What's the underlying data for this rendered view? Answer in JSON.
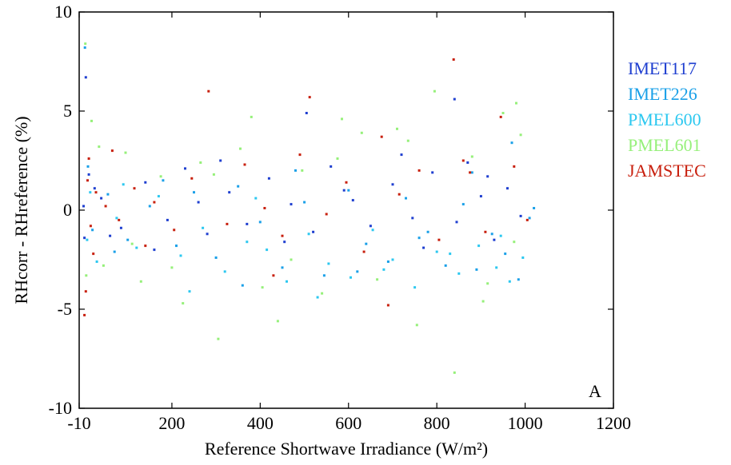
{
  "chart_data": {
    "type": "scatter",
    "panel_label": "A",
    "xlabel": "Reference Shortwave Irradiance (W/m²)",
    "ylabel": "RHcorr - RHreference (%)",
    "xlim": [
      -10,
      1200
    ],
    "ylim": [
      -10,
      10
    ],
    "x_ticks": [
      -10,
      200,
      400,
      600,
      800,
      1000,
      1200
    ],
    "y_ticks": [
      -10,
      -5,
      0,
      5,
      10
    ],
    "x_tick_labels": [
      "-10",
      "200",
      "400",
      "600",
      "800",
      "1000",
      "1200"
    ],
    "y_tick_labels": [
      "-10",
      "-5",
      "0",
      "5",
      "10"
    ],
    "grid": false,
    "legend_position": "right",
    "series": [
      {
        "name": "IMET117",
        "color": "#1f3fd0",
        "x": [
          5,
          12,
          40,
          85,
          140,
          190,
          230,
          280,
          330,
          370,
          420,
          470,
          520,
          560,
          610,
          650,
          700,
          745,
          790,
          840,
          870,
          900,
          930,
          960,
          990,
          2,
          25,
          160,
          310,
          455,
          590,
          720,
          845,
          915,
          0,
          60,
          260,
          505,
          770
        ],
        "y": [
          6.7,
          1.8,
          0.6,
          -0.9,
          1.4,
          -0.5,
          2.1,
          -1.2,
          0.9,
          -0.7,
          1.6,
          0.3,
          -1.1,
          2.2,
          0.5,
          -0.8,
          1.3,
          -0.4,
          1.9,
          5.6,
          2.4,
          0.7,
          -1.5,
          1.1,
          -0.3,
          -1.4,
          1.1,
          -2.0,
          2.5,
          -1.6,
          1.0,
          2.8,
          -0.6,
          1.7,
          0.2,
          -1.3,
          0.4,
          4.9,
          -1.9
        ]
      },
      {
        "name": "IMET226",
        "color": "#1aa0e8",
        "x": [
          3,
          20,
          55,
          100,
          150,
          210,
          250,
          300,
          350,
          400,
          450,
          500,
          545,
          600,
          640,
          690,
          730,
          780,
          820,
          860,
          890,
          925,
          955,
          985,
          1010,
          10,
          70,
          180,
          360,
          480,
          620,
          760,
          880,
          970,
          1020
        ],
        "y": [
          8.2,
          -1.0,
          0.8,
          -1.5,
          0.2,
          -1.8,
          0.9,
          -2.4,
          1.2,
          -0.6,
          -2.9,
          0.4,
          -3.3,
          1.0,
          -1.7,
          -2.6,
          0.6,
          -1.1,
          -2.8,
          0.3,
          -3.0,
          -1.2,
          -2.2,
          -3.5,
          -0.4,
          2.2,
          -2.1,
          1.5,
          -3.8,
          2.0,
          -3.1,
          -1.4,
          1.9,
          3.4,
          0.1
        ]
      },
      {
        "name": "PMEL600",
        "color": "#2cc8f0",
        "x": [
          8,
          30,
          75,
          120,
          170,
          220,
          270,
          320,
          370,
          415,
          460,
          510,
          555,
          605,
          655,
          700,
          750,
          800,
          850,
          895,
          935,
          965,
          995,
          15,
          90,
          240,
          390,
          530,
          680,
          830,
          945
        ],
        "y": [
          -1.5,
          -2.6,
          -0.4,
          -1.9,
          0.7,
          -2.3,
          -0.9,
          -3.1,
          -1.6,
          -2.0,
          -3.6,
          -1.2,
          -2.7,
          -3.4,
          -1.0,
          -2.5,
          -3.9,
          -2.1,
          -3.2,
          -1.8,
          -2.9,
          -3.6,
          -2.4,
          0.9,
          1.3,
          -4.1,
          0.6,
          -4.4,
          -3.0,
          -2.2,
          -1.3
        ]
      },
      {
        "name": "PMEL601",
        "color": "#96f07a",
        "x": [
          4,
          18,
          45,
          95,
          130,
          175,
          225,
          265,
          305,
          355,
          405,
          440,
          495,
          540,
          585,
          630,
          665,
          710,
          755,
          795,
          840,
          880,
          915,
          950,
          980,
          990,
          6,
          35,
          110,
          200,
          295,
          380,
          470,
          575,
          735,
          905,
          975
        ],
        "y": [
          8.4,
          4.5,
          -2.8,
          2.9,
          -3.6,
          1.7,
          -4.7,
          2.4,
          -6.5,
          3.1,
          -3.9,
          -5.6,
          2.0,
          -4.2,
          4.6,
          3.9,
          -3.5,
          4.1,
          -5.8,
          6.0,
          -8.2,
          2.7,
          -3.7,
          4.9,
          5.4,
          3.8,
          -3.3,
          3.2,
          -1.7,
          -2.9,
          1.8,
          4.7,
          -2.5,
          2.6,
          3.5,
          -4.6,
          -1.6
        ]
      },
      {
        "name": "JAMSTEC",
        "color": "#c8200e",
        "x": [
          2,
          9,
          16,
          28,
          50,
          80,
          115,
          160,
          205,
          245,
          283,
          325,
          365,
          410,
          450,
          490,
          512,
          550,
          595,
          635,
          675,
          715,
          760,
          805,
          838,
          875,
          910,
          945,
          975,
          1005,
          5,
          12,
          22,
          65,
          140,
          430,
          690,
          860
        ],
        "y": [
          -5.3,
          1.5,
          -0.8,
          0.9,
          0.2,
          -0.5,
          1.1,
          0.4,
          -1.0,
          1.6,
          6.0,
          -0.7,
          2.3,
          0.1,
          -1.3,
          2.8,
          5.7,
          -0.2,
          1.4,
          -2.1,
          3.7,
          0.8,
          2.0,
          -1.5,
          7.6,
          1.9,
          -1.1,
          4.7,
          2.2,
          -0.5,
          -4.1,
          2.6,
          -2.2,
          3.0,
          -1.8,
          -3.3,
          -4.8,
          2.5
        ]
      }
    ]
  }
}
